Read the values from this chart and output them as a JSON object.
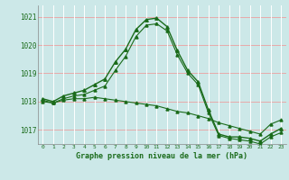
{
  "xlabel": "Graphe pression niveau de la mer (hPa)",
  "bg_color": "#cce8e8",
  "grid_color_h": "#e8aaaa",
  "grid_color_v": "#ffffff",
  "line_color": "#1a6b1a",
  "marker_color": "#1a6b1a",
  "ylim": [
    1016.5,
    1021.4
  ],
  "yticks": [
    1017,
    1018,
    1019,
    1020,
    1021
  ],
  "xlim": [
    -0.5,
    23.5
  ],
  "xticks": [
    0,
    1,
    2,
    3,
    4,
    5,
    6,
    7,
    8,
    9,
    10,
    11,
    12,
    13,
    14,
    15,
    16,
    17,
    18,
    19,
    20,
    21,
    22,
    23
  ],
  "series1_x": [
    0,
    1,
    2,
    3,
    4,
    5,
    6,
    7,
    8,
    9,
    10,
    11,
    12,
    13,
    14,
    15,
    16,
    17,
    18,
    19,
    20,
    21,
    22,
    23
  ],
  "series1_y": [
    1018.1,
    1018.0,
    1018.2,
    1018.3,
    1018.4,
    1018.6,
    1018.8,
    1019.4,
    1019.85,
    1020.55,
    1020.9,
    1020.95,
    1020.65,
    1019.8,
    1019.1,
    1018.7,
    1017.7,
    1016.85,
    1016.75,
    1016.75,
    1016.7,
    1016.6,
    1016.85,
    1017.05
  ],
  "series2_x": [
    0,
    1,
    2,
    3,
    4,
    5,
    6,
    7,
    8,
    9,
    10,
    11,
    12,
    13,
    14,
    15,
    16,
    17,
    18,
    19,
    20,
    21,
    22,
    23
  ],
  "series2_y": [
    1018.05,
    1017.95,
    1018.1,
    1018.2,
    1018.25,
    1018.4,
    1018.55,
    1019.1,
    1019.6,
    1020.3,
    1020.7,
    1020.75,
    1020.5,
    1019.65,
    1019.0,
    1018.6,
    1017.6,
    1016.8,
    1016.7,
    1016.65,
    1016.6,
    1016.5,
    1016.75,
    1016.9
  ],
  "series3_x": [
    0,
    1,
    2,
    3,
    4,
    5,
    6,
    7,
    8,
    9,
    10,
    11,
    12,
    13,
    14,
    15,
    16,
    17,
    18,
    19,
    20,
    21,
    22,
    23
  ],
  "series3_y": [
    1018.0,
    1017.95,
    1018.05,
    1018.1,
    1018.1,
    1018.15,
    1018.1,
    1018.05,
    1018.0,
    1017.95,
    1017.9,
    1017.85,
    1017.75,
    1017.65,
    1017.6,
    1017.5,
    1017.4,
    1017.25,
    1017.15,
    1017.05,
    1016.95,
    1016.85,
    1017.2,
    1017.35
  ]
}
